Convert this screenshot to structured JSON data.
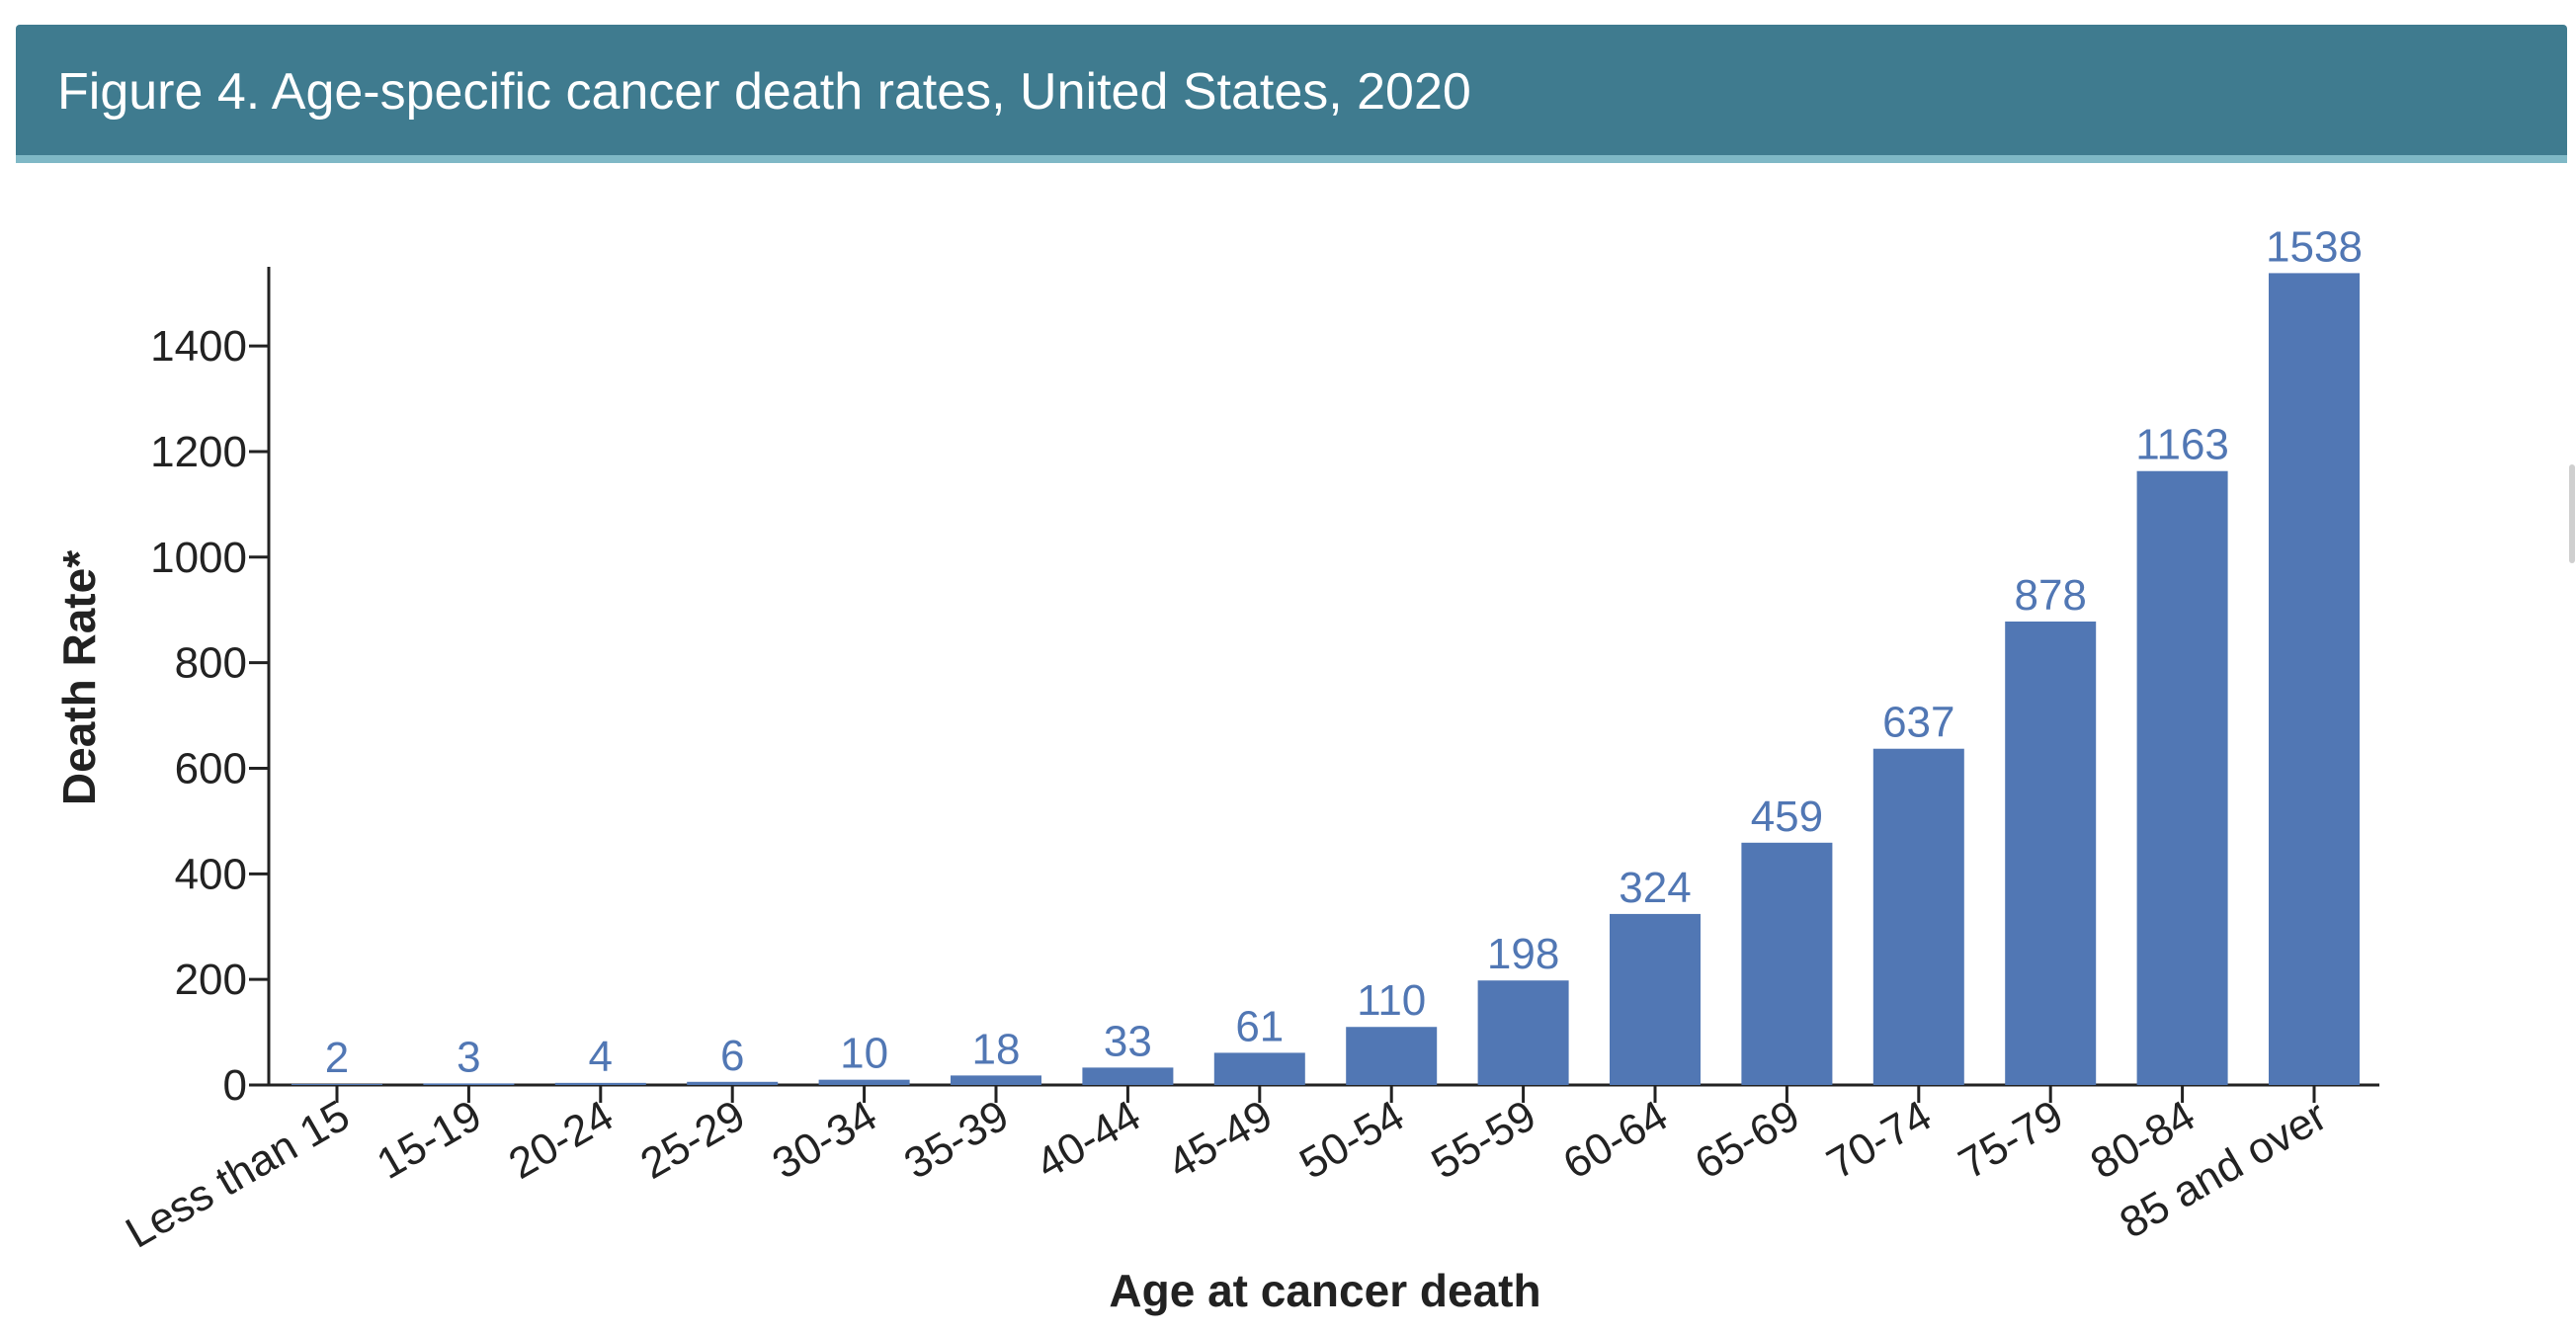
{
  "header": {
    "title": "Figure 4. Age-specific cancer death rates, United States, 2020"
  },
  "colors": {
    "header_bg": "#3f7b8f",
    "header_border": "#7fb8c6",
    "bar": "#5177b4",
    "data_label": "#5177b4",
    "axis": "#222222"
  },
  "chart_data": {
    "type": "bar",
    "title": "Figure 4. Age-specific cancer death rates, United States, 2020",
    "xlabel": "Age at cancer death",
    "ylabel": "Death Rate*",
    "ylim": [
      0,
      1550
    ],
    "yticks": [
      0,
      200,
      400,
      600,
      800,
      1000,
      1200,
      1400
    ],
    "grid": false,
    "legend": "none",
    "categories": [
      "Less than 15",
      "15-19",
      "20-24",
      "25-29",
      "30-34",
      "35-39",
      "40-44",
      "45-49",
      "50-54",
      "55-59",
      "60-64",
      "65-69",
      "70-74",
      "75-79",
      "80-84",
      "85 and over"
    ],
    "values": [
      2,
      3,
      4,
      6,
      10,
      18,
      33,
      61,
      110,
      198,
      324,
      459,
      637,
      878,
      1163,
      1538
    ]
  }
}
